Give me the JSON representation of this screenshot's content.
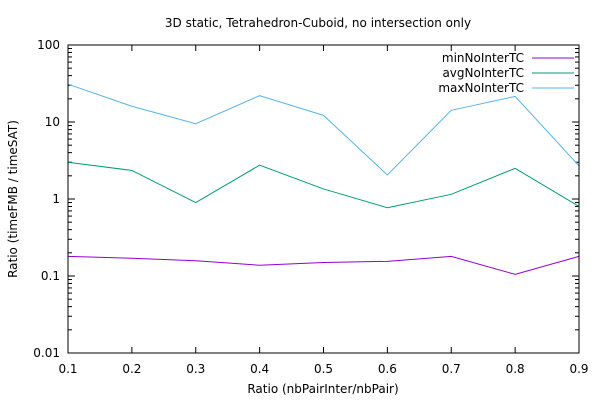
{
  "chart_data": {
    "type": "line",
    "title": "3D static, Tetrahedron-Cuboid, no intersection only",
    "xlabel": "Ratio (nbPairInter/nbPair)",
    "ylabel": "Ratio (timeFMB / timeSAT)",
    "xlim": [
      0.1,
      0.9
    ],
    "ylim": [
      0.01,
      100
    ],
    "yscale": "log",
    "grid": false,
    "legend_position": "top-right",
    "x": [
      0.1,
      0.2,
      0.3,
      0.4,
      0.5,
      0.6,
      0.7,
      0.8,
      0.9
    ],
    "xticks": [
      "0.1",
      "0.2",
      "0.3",
      "0.4",
      "0.5",
      "0.6",
      "0.7",
      "0.8",
      "0.9"
    ],
    "yticks": [
      {
        "value": 0.01,
        "label": "0.01"
      },
      {
        "value": 0.1,
        "label": "0.1"
      },
      {
        "value": 1,
        "label": "1"
      },
      {
        "value": 10,
        "label": "10"
      },
      {
        "value": 100,
        "label": "100"
      }
    ],
    "series": [
      {
        "name": "minNoInterTC",
        "color": "#9400d3",
        "values": [
          0.18,
          0.17,
          0.158,
          0.138,
          0.15,
          0.155,
          0.18,
          0.105,
          0.18
        ]
      },
      {
        "name": "avgNoInterTC",
        "color": "#009e73",
        "values": [
          3.0,
          2.35,
          0.9,
          2.75,
          1.35,
          0.77,
          1.15,
          2.5,
          0.8
        ]
      },
      {
        "name": "maxNoInterTC",
        "color": "#56b4e9",
        "values": [
          31,
          16,
          9.5,
          22,
          12.2,
          2.05,
          14.2,
          21.5,
          2.7
        ]
      }
    ]
  }
}
